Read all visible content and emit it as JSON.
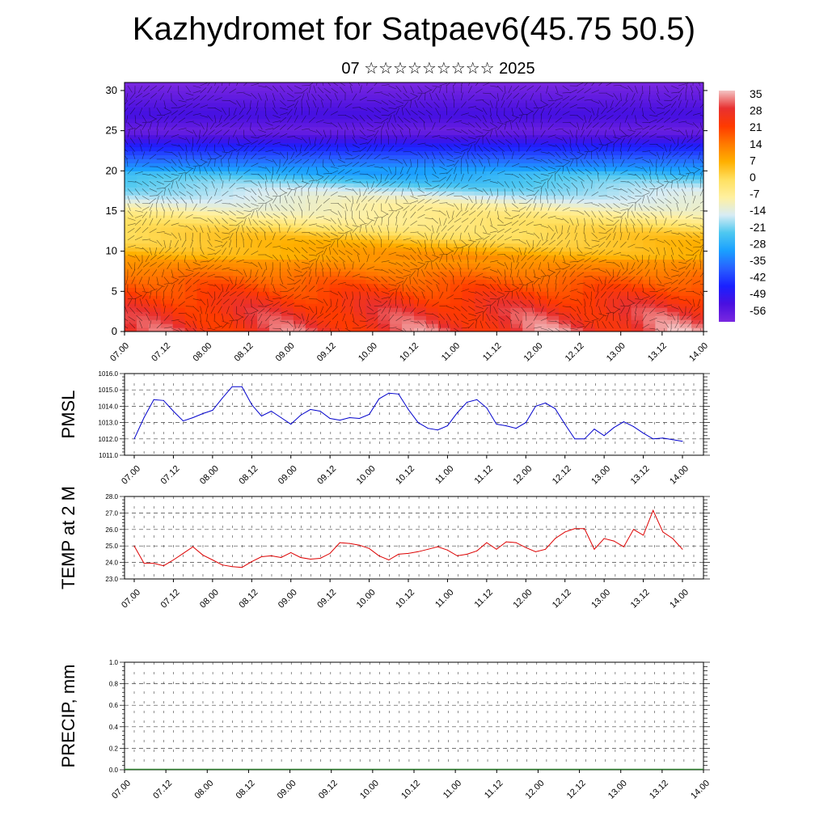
{
  "title": "Kazhydromet for Satpaev6(45.75 50.5)",
  "subtitle": "07 ☆☆☆☆☆☆☆☆☆ 2025",
  "colorbar": {
    "labels": [
      "35",
      "28",
      "21",
      "14",
      "7",
      "0",
      "-7",
      "-14",
      "-21",
      "-28",
      "-35",
      "-42",
      "-49",
      "-56"
    ],
    "colors": [
      "#f4c4c4",
      "#e83030",
      "#ff3a00",
      "#ff7a00",
      "#ffb000",
      "#ffe060",
      "#fff0a0",
      "#d8ecf4",
      "#4ec8f0",
      "#1aa0ff",
      "#2860ff",
      "#1a20ff",
      "#4a10e0",
      "#7a28e0"
    ]
  },
  "time_labels": [
    "07.00",
    "07.12",
    "08.00",
    "08.12",
    "09.00",
    "09.12",
    "10.00",
    "10.12",
    "11.00",
    "11.12",
    "12.00",
    "12.12",
    "13.00",
    "13.12",
    "14.00"
  ],
  "chart_data": [
    {
      "type": "heatmap",
      "name": "upper-air",
      "x_labels": [
        "07.00",
        "07.12",
        "08.00",
        "08.12",
        "09.00",
        "09.12",
        "10.00",
        "10.12",
        "11.00",
        "11.12",
        "12.00",
        "12.12",
        "13.00",
        "13.12",
        "14.00"
      ],
      "y_ticks": [
        "0",
        "5",
        "10",
        "15",
        "20",
        "25",
        "30"
      ],
      "ylim": [
        0,
        31
      ],
      "value_range": [
        -56,
        35
      ],
      "profile_levels": [
        0,
        3,
        6,
        9,
        12,
        14,
        16,
        17.5,
        19,
        21,
        23,
        25,
        27,
        29,
        31
      ],
      "profile_values": [
        26,
        24,
        18,
        10,
        2,
        -4,
        -10,
        -16,
        -22,
        -32,
        -42,
        -54,
        -48,
        -52,
        -56
      ]
    },
    {
      "type": "line",
      "name": "PMSL",
      "ylabel": "PMSL",
      "ylim": [
        1011.0,
        1016.0
      ],
      "y_ticks": [
        "1011.0",
        "1012.0",
        "1013.0",
        "1014.0",
        "1015.0",
        "1016.0"
      ],
      "color": "#0000cc",
      "values": [
        1012.0,
        1013.3,
        1014.4,
        1014.35,
        1013.7,
        1013.1,
        1013.3,
        1013.55,
        1013.75,
        1014.5,
        1015.2,
        1015.2,
        1014.1,
        1013.4,
        1013.7,
        1013.3,
        1012.9,
        1013.45,
        1013.8,
        1013.7,
        1013.25,
        1013.15,
        1013.3,
        1013.25,
        1013.5,
        1014.45,
        1014.8,
        1014.75,
        1013.8,
        1013.0,
        1012.65,
        1012.55,
        1012.8,
        1013.6,
        1014.25,
        1014.4,
        1013.9,
        1012.9,
        1012.8,
        1012.65,
        1013.0,
        1014.0,
        1014.2,
        1013.85,
        1012.9,
        1012.0,
        1012.0,
        1012.6,
        1012.2,
        1012.7,
        1013.05,
        1012.75,
        1012.35,
        1012.0,
        1012.05,
        1011.95,
        1011.85
      ]
    },
    {
      "type": "line",
      "name": "TEMP at 2 M",
      "ylabel": "TEMP at 2 M",
      "ylim": [
        23.0,
        28.0
      ],
      "y_ticks": [
        "23.0",
        "24.0",
        "25.0",
        "26.0",
        "27.0",
        "28.0"
      ],
      "color": "#dd0000",
      "values": [
        25.0,
        23.95,
        23.95,
        23.8,
        24.15,
        24.55,
        24.95,
        24.45,
        24.15,
        23.85,
        23.75,
        23.7,
        24.05,
        24.35,
        24.4,
        24.3,
        24.6,
        24.3,
        24.2,
        24.25,
        24.55,
        25.2,
        25.15,
        25.05,
        24.85,
        24.4,
        24.15,
        24.5,
        24.55,
        24.65,
        24.8,
        24.95,
        24.75,
        24.4,
        24.5,
        24.7,
        25.2,
        24.8,
        25.25,
        25.2,
        24.9,
        24.65,
        24.8,
        25.45,
        25.85,
        26.05,
        26.05,
        24.8,
        25.45,
        25.3,
        24.95,
        26.0,
        25.65,
        27.15,
        25.85,
        25.45,
        24.8
      ]
    },
    {
      "type": "bar",
      "name": "PRECIP",
      "ylabel": "PRECIP, mm",
      "ylim": [
        0.0,
        1.0
      ],
      "y_ticks": [
        "0.0",
        "0.2",
        "0.4",
        "0.6",
        "0.8",
        "1.0"
      ],
      "values": [
        0,
        0,
        0,
        0,
        0,
        0,
        0,
        0,
        0,
        0,
        0,
        0,
        0,
        0,
        0,
        0,
        0,
        0,
        0,
        0,
        0,
        0,
        0,
        0,
        0,
        0,
        0,
        0,
        0,
        0,
        0,
        0,
        0,
        0,
        0,
        0,
        0,
        0,
        0,
        0,
        0,
        0,
        0,
        0,
        0,
        0,
        0,
        0,
        0,
        0,
        0,
        0,
        0,
        0,
        0,
        0,
        0
      ]
    }
  ]
}
